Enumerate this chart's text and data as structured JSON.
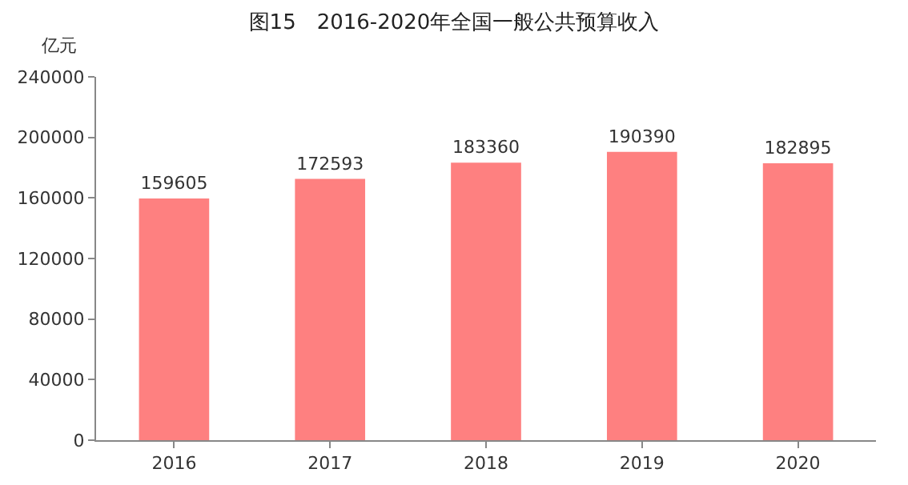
{
  "chart_data": {
    "type": "bar",
    "title": "图15　2016-2020年全国一般公共预算收入",
    "ylabel": "亿元",
    "categories": [
      "2016",
      "2017",
      "2018",
      "2019",
      "2020"
    ],
    "values": [
      159605,
      172593,
      183360,
      190390,
      182895
    ],
    "color": "#fe8080",
    "data_labels": true,
    "ylim": [
      0,
      240000
    ],
    "yticks": [
      0,
      40000,
      80000,
      120000,
      160000,
      200000,
      240000
    ]
  }
}
